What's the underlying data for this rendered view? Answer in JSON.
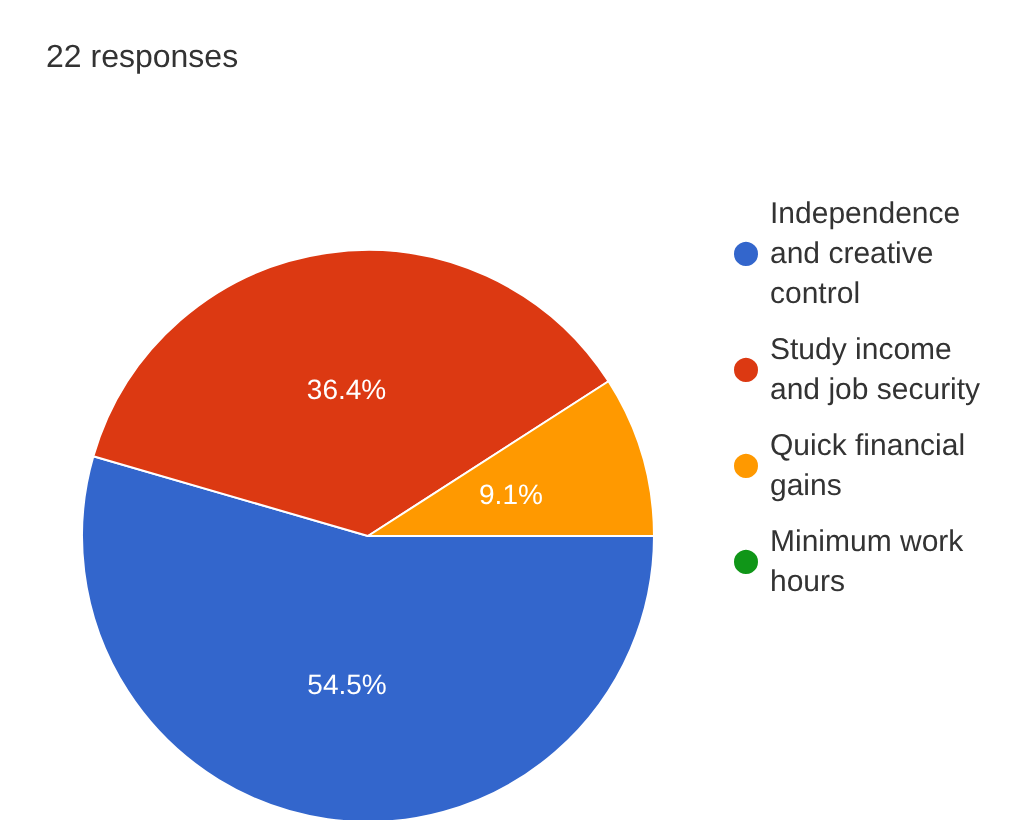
{
  "chart_data": {
    "type": "pie",
    "title": "22 responses",
    "categories": [
      "Independence and creative control",
      "Study income and job security",
      "Quick financial gains",
      "Minimum work hours"
    ],
    "values": [
      54.5,
      36.4,
      9.1,
      0
    ],
    "colors": [
      "#3366cc",
      "#dc3912",
      "#ff9900",
      "#109618"
    ],
    "value_labels": [
      "54.5%",
      "36.4%",
      "9.1%",
      null
    ],
    "legend": "right"
  }
}
